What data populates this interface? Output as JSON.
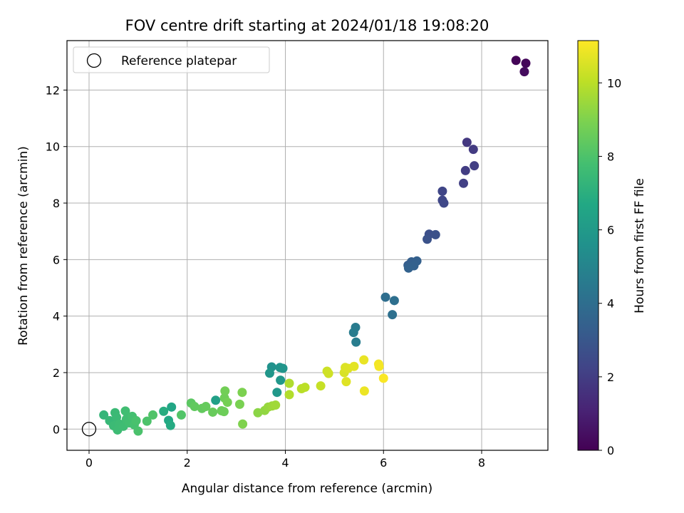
{
  "chart_data": {
    "type": "scatter",
    "title": "FOV centre drift starting at 2024/01/18 19:08:20",
    "xlabel": "Angular distance from reference (arcmin)",
    "ylabel": "Rotation from reference (arcmin)",
    "xlim": [
      -0.45,
      9.35
    ],
    "ylim": [
      -0.75,
      13.75
    ],
    "xticks": [
      0,
      2,
      4,
      6,
      8
    ],
    "yticks": [
      0,
      2,
      4,
      6,
      8,
      10,
      12
    ],
    "grid": true,
    "legend": {
      "placement": "top-left",
      "entries": [
        "Reference platepar"
      ]
    },
    "reference_point": {
      "x": 0,
      "y": 0
    },
    "colorbar": {
      "label": "Hours from first FF file",
      "colormap": "viridis",
      "range": [
        0,
        11.15
      ],
      "ticks": [
        0,
        2,
        4,
        6,
        8,
        10
      ]
    },
    "series": [
      {
        "points": [
          {
            "x": 8.7,
            "y": 13.05,
            "c": 0.1
          },
          {
            "x": 8.9,
            "y": 12.95,
            "c": 0.2
          },
          {
            "x": 8.87,
            "y": 12.65,
            "c": 0.35
          },
          {
            "x": 7.7,
            "y": 10.15,
            "c": 1.8
          },
          {
            "x": 7.83,
            "y": 9.9,
            "c": 1.9
          },
          {
            "x": 7.67,
            "y": 9.15,
            "c": 2.0
          },
          {
            "x": 7.85,
            "y": 9.32,
            "c": 2.05
          },
          {
            "x": 7.63,
            "y": 8.7,
            "c": 2.1
          },
          {
            "x": 7.2,
            "y": 8.42,
            "c": 2.3
          },
          {
            "x": 7.2,
            "y": 8.1,
            "c": 2.35
          },
          {
            "x": 7.23,
            "y": 8.0,
            "c": 2.4
          },
          {
            "x": 6.93,
            "y": 6.9,
            "c": 2.7
          },
          {
            "x": 7.06,
            "y": 6.88,
            "c": 2.75
          },
          {
            "x": 6.89,
            "y": 6.72,
            "c": 2.8
          },
          {
            "x": 6.5,
            "y": 5.8,
            "c": 3.3
          },
          {
            "x": 6.57,
            "y": 5.92,
            "c": 3.35
          },
          {
            "x": 6.68,
            "y": 5.95,
            "c": 3.4
          },
          {
            "x": 6.62,
            "y": 5.78,
            "c": 3.45
          },
          {
            "x": 6.51,
            "y": 5.7,
            "c": 3.5
          },
          {
            "x": 6.04,
            "y": 4.67,
            "c": 4.0
          },
          {
            "x": 6.22,
            "y": 4.55,
            "c": 4.05
          },
          {
            "x": 6.18,
            "y": 4.05,
            "c": 4.1
          },
          {
            "x": 5.43,
            "y": 3.6,
            "c": 4.6
          },
          {
            "x": 5.39,
            "y": 3.42,
            "c": 4.65
          },
          {
            "x": 5.44,
            "y": 3.08,
            "c": 4.7
          },
          {
            "x": 3.72,
            "y": 2.2,
            "c": 5.6
          },
          {
            "x": 3.89,
            "y": 2.18,
            "c": 5.7
          },
          {
            "x": 3.95,
            "y": 2.15,
            "c": 5.75
          },
          {
            "x": 3.68,
            "y": 1.98,
            "c": 5.8
          },
          {
            "x": 3.9,
            "y": 1.73,
            "c": 5.85
          },
          {
            "x": 3.83,
            "y": 1.3,
            "c": 5.9
          },
          {
            "x": 2.58,
            "y": 1.02,
            "c": 6.3
          },
          {
            "x": 1.68,
            "y": 0.78,
            "c": 6.6
          },
          {
            "x": 1.62,
            "y": 0.31,
            "c": 6.7
          },
          {
            "x": 1.66,
            "y": 0.13,
            "c": 6.8
          },
          {
            "x": 1.52,
            "y": 0.63,
            "c": 6.9
          },
          {
            "x": 0.3,
            "y": 0.5,
            "c": 7.3
          },
          {
            "x": 0.42,
            "y": 0.3,
            "c": 7.4
          },
          {
            "x": 0.53,
            "y": 0.58,
            "c": 7.5
          },
          {
            "x": 0.56,
            "y": 0.42,
            "c": 7.5
          },
          {
            "x": 0.5,
            "y": 0.12,
            "c": 7.55
          },
          {
            "x": 0.58,
            "y": -0.03,
            "c": 7.6
          },
          {
            "x": 0.62,
            "y": 0.18,
            "c": 7.6
          },
          {
            "x": 0.7,
            "y": 0.1,
            "c": 7.65
          },
          {
            "x": 0.76,
            "y": 0.35,
            "c": 7.7
          },
          {
            "x": 0.74,
            "y": 0.64,
            "c": 7.7
          },
          {
            "x": 0.82,
            "y": 0.22,
            "c": 7.75
          },
          {
            "x": 0.88,
            "y": 0.45,
            "c": 7.8
          },
          {
            "x": 0.92,
            "y": 0.15,
            "c": 7.85
          },
          {
            "x": 0.96,
            "y": 0.3,
            "c": 7.9
          },
          {
            "x": 1.0,
            "y": -0.07,
            "c": 7.95
          },
          {
            "x": 1.18,
            "y": 0.28,
            "c": 8.0
          },
          {
            "x": 1.3,
            "y": 0.5,
            "c": 8.05
          },
          {
            "x": 1.88,
            "y": 0.5,
            "c": 8.1
          },
          {
            "x": 2.08,
            "y": 0.92,
            "c": 8.3
          },
          {
            "x": 2.15,
            "y": 0.8,
            "c": 8.4
          },
          {
            "x": 2.3,
            "y": 0.73,
            "c": 8.45
          },
          {
            "x": 2.38,
            "y": 0.8,
            "c": 8.5
          },
          {
            "x": 2.52,
            "y": 0.6,
            "c": 8.55
          },
          {
            "x": 2.7,
            "y": 0.65,
            "c": 8.6
          },
          {
            "x": 2.75,
            "y": 0.62,
            "c": 8.65
          },
          {
            "x": 2.76,
            "y": 1.1,
            "c": 8.7
          },
          {
            "x": 2.77,
            "y": 1.35,
            "c": 8.75
          },
          {
            "x": 2.82,
            "y": 0.95,
            "c": 8.8
          },
          {
            "x": 3.07,
            "y": 0.88,
            "c": 8.9
          },
          {
            "x": 3.12,
            "y": 1.3,
            "c": 8.95
          },
          {
            "x": 3.13,
            "y": 0.18,
            "c": 9.0
          },
          {
            "x": 3.44,
            "y": 0.58,
            "c": 9.2
          },
          {
            "x": 3.58,
            "y": 0.66,
            "c": 9.3
          },
          {
            "x": 3.65,
            "y": 0.78,
            "c": 9.4
          },
          {
            "x": 3.73,
            "y": 0.82,
            "c": 9.5
          },
          {
            "x": 3.8,
            "y": 0.85,
            "c": 9.55
          },
          {
            "x": 4.08,
            "y": 1.62,
            "c": 9.8
          },
          {
            "x": 4.08,
            "y": 1.22,
            "c": 9.85
          },
          {
            "x": 4.33,
            "y": 1.43,
            "c": 9.95
          },
          {
            "x": 4.4,
            "y": 1.48,
            "c": 10.0
          },
          {
            "x": 4.72,
            "y": 1.53,
            "c": 10.2
          },
          {
            "x": 4.85,
            "y": 2.05,
            "c": 10.3
          },
          {
            "x": 4.88,
            "y": 1.97,
            "c": 10.35
          },
          {
            "x": 5.2,
            "y": 2.0,
            "c": 10.5
          },
          {
            "x": 5.22,
            "y": 2.18,
            "c": 10.55
          },
          {
            "x": 5.28,
            "y": 2.15,
            "c": 10.6
          },
          {
            "x": 5.24,
            "y": 1.68,
            "c": 10.62
          },
          {
            "x": 5.4,
            "y": 2.22,
            "c": 10.7
          },
          {
            "x": 5.6,
            "y": 2.45,
            "c": 10.8
          },
          {
            "x": 5.61,
            "y": 1.35,
            "c": 10.85
          },
          {
            "x": 5.9,
            "y": 2.3,
            "c": 10.95
          },
          {
            "x": 5.91,
            "y": 2.22,
            "c": 11.0
          },
          {
            "x": 6.0,
            "y": 1.8,
            "c": 11.1
          }
        ]
      }
    ]
  }
}
